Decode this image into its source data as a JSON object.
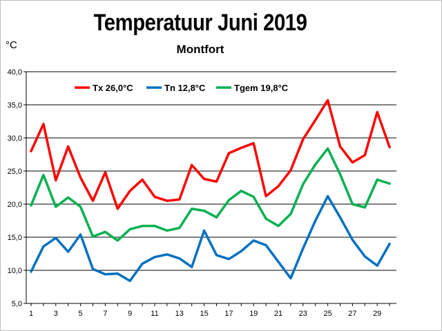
{
  "chart_data": {
    "type": "line",
    "title": "Temperatuur Juni 2019",
    "subtitle": "Montfort",
    "ylabel": "°C",
    "xlabel": "",
    "ylim": [
      5,
      40
    ],
    "yticks": [
      "5,0",
      "10,0",
      "15,0",
      "20,0",
      "25,0",
      "30,0",
      "35,0",
      "40,0"
    ],
    "xticks": [
      "1",
      "3",
      "5",
      "7",
      "9",
      "11",
      "13",
      "15",
      "17",
      "19",
      "21",
      "23",
      "25",
      "27",
      "29"
    ],
    "x": [
      1,
      2,
      3,
      4,
      5,
      6,
      7,
      8,
      9,
      10,
      11,
      12,
      13,
      14,
      15,
      16,
      17,
      18,
      19,
      20,
      21,
      22,
      23,
      24,
      25,
      26,
      27,
      28,
      29,
      30
    ],
    "grid": true,
    "legend_position": "top",
    "series": [
      {
        "name": "Tx 26,0°C",
        "color": "#ff0000",
        "values": [
          28.0,
          32.1,
          23.6,
          28.7,
          24.0,
          20.5,
          24.8,
          19.3,
          22.0,
          23.7,
          21.1,
          20.5,
          20.7,
          25.9,
          23.8,
          23.4,
          27.7,
          28.5,
          29.2,
          21.2,
          22.7,
          25.1,
          29.8,
          32.7,
          35.7,
          28.7,
          26.3,
          27.4,
          33.9,
          28.6
        ]
      },
      {
        "name": "Tn 12,8°C",
        "color": "#0070c0",
        "values": [
          9.8,
          13.6,
          14.9,
          12.8,
          15.4,
          10.2,
          9.4,
          9.5,
          8.4,
          11.0,
          12.0,
          12.4,
          11.8,
          10.5,
          16.0,
          12.3,
          11.7,
          12.9,
          14.5,
          13.8,
          11.3,
          8.8,
          13.3,
          17.5,
          21.2,
          18.0,
          14.6,
          12.1,
          10.7,
          14.0
        ]
      },
      {
        "name": "Tgem 19,8°C",
        "color": "#00b050",
        "values": [
          19.8,
          24.4,
          19.6,
          21.0,
          19.6,
          15.1,
          15.8,
          14.5,
          16.2,
          16.7,
          16.7,
          16.0,
          16.4,
          19.3,
          19.0,
          18.0,
          20.6,
          22.0,
          21.1,
          17.8,
          16.7,
          18.5,
          23.0,
          26.0,
          28.4,
          24.5,
          20.0,
          19.5,
          23.7,
          23.1
        ]
      }
    ]
  }
}
